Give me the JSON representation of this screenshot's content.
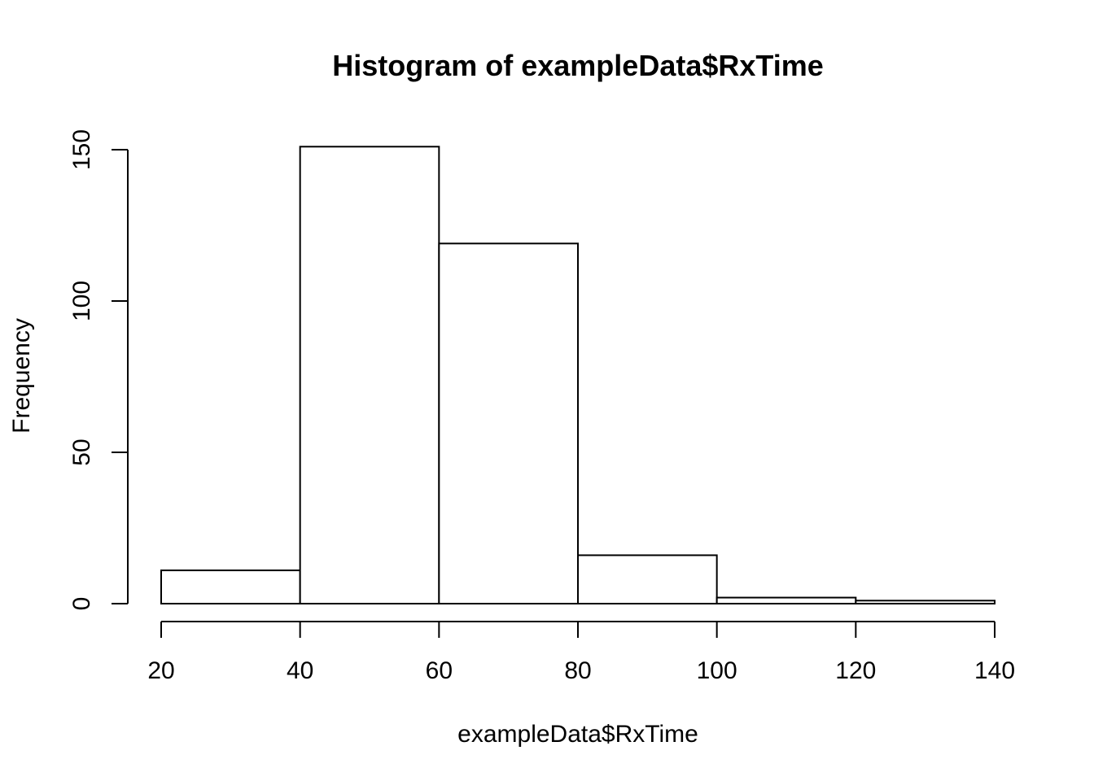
{
  "chart_data": {
    "type": "bar",
    "title": "Histogram of exampleData$RxTime",
    "xlabel": "exampleData$RxTime",
    "ylabel": "Frequency",
    "bins": [
      {
        "from": 20,
        "to": 40,
        "count": 11
      },
      {
        "from": 40,
        "to": 60,
        "count": 151
      },
      {
        "from": 60,
        "to": 80,
        "count": 119
      },
      {
        "from": 80,
        "to": 100,
        "count": 16
      },
      {
        "from": 100,
        "to": 120,
        "count": 2
      },
      {
        "from": 120,
        "to": 140,
        "count": 1
      }
    ],
    "x_ticks": [
      20,
      40,
      60,
      80,
      100,
      120,
      140
    ],
    "y_ticks": [
      0,
      50,
      100,
      150
    ],
    "xlim": [
      20,
      140
    ],
    "ylim": [
      0,
      150
    ],
    "grid": false,
    "bar_fill": "#ffffff",
    "bar_stroke": "#000000"
  }
}
